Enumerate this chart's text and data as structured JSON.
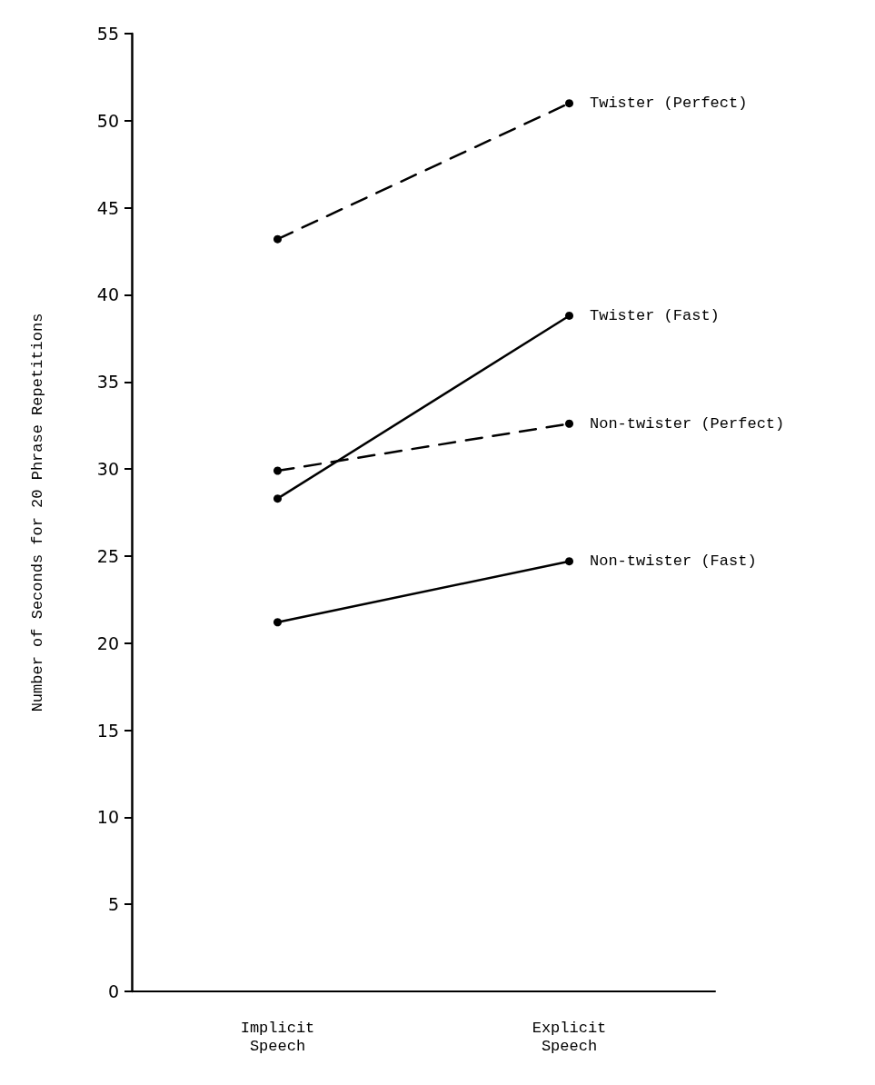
{
  "chart_data": {
    "type": "line",
    "ylabel": "Number of Seconds for 20 Phrase Repetitions",
    "categories": [
      "Implicit\nSpeech",
      "Explicit\nSpeech"
    ],
    "series": [
      {
        "name": "Twister (Perfect)",
        "color": "#000000",
        "values": [
          43.2,
          51.0
        ],
        "line_style": "dashed"
      },
      {
        "name": "Twister (Fast)",
        "color": "#000000",
        "values": [
          28.3,
          38.8
        ],
        "line_style": "solid"
      },
      {
        "name": "Non-twister (Perfect)",
        "color": "#000000",
        "values": [
          29.9,
          32.6
        ],
        "line_style": "dashed"
      },
      {
        "name": "Non-twister (Fast)",
        "color": "#000000",
        "values": [
          21.2,
          24.7
        ],
        "line_style": "solid"
      }
    ],
    "ylim": [
      0,
      55
    ],
    "yticks": [
      0,
      5,
      10,
      15,
      20,
      25,
      30,
      35,
      40,
      45,
      50,
      55
    ],
    "grid": false,
    "legend": false,
    "marker": "circle"
  }
}
